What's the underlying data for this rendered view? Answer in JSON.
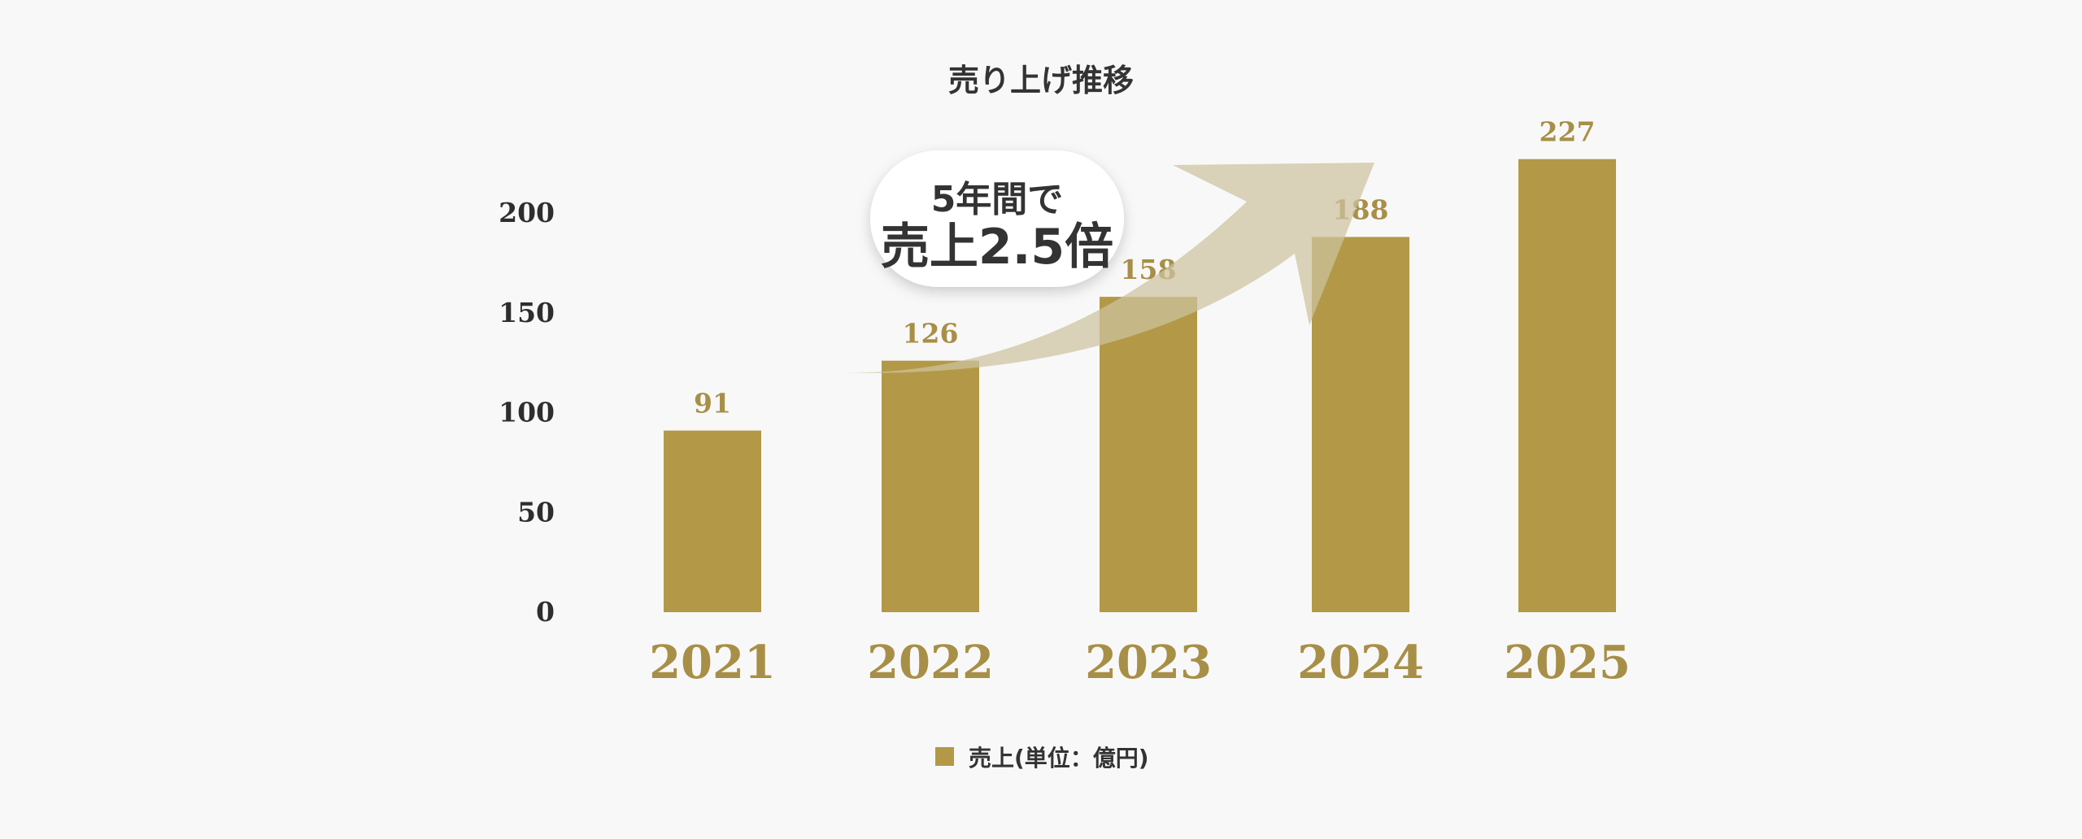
{
  "chart_data": {
    "type": "bar",
    "title": "売り上げ推移",
    "categories": [
      "2021",
      "2022",
      "2023",
      "2024",
      "2025"
    ],
    "series": [
      {
        "name": "売上(単位：億円)",
        "values": [
          91,
          126,
          158,
          188,
          227
        ]
      }
    ],
    "ylim": [
      0,
      227
    ],
    "yticks": [
      0,
      50,
      100,
      150,
      200
    ],
    "grid": false,
    "legend_position": "bottom-center",
    "annotation": {
      "line1": "5年間で",
      "line2": "売上2.5倍"
    }
  },
  "colors": {
    "bar": "#b39947",
    "label": "#a88f47",
    "arrow": "#cdc29f",
    "background": "#f8f8f8"
  }
}
